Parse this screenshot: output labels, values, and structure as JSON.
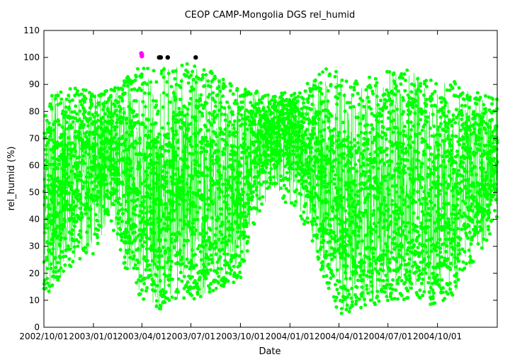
{
  "chart_data": {
    "type": "scatter",
    "title": "CEOP CAMP-Mongolia DGS  rel_humid",
    "xlabel": "Date",
    "ylabel": "rel_humid (%)",
    "ylim": [
      0,
      110
    ],
    "xlim": [
      "2002-10-01",
      "2005-01-20"
    ],
    "grid": false,
    "legend": "none",
    "yticks": [
      0,
      10,
      20,
      30,
      40,
      50,
      60,
      70,
      80,
      90,
      100,
      110
    ],
    "xticks": [
      {
        "date": "2002-10-01",
        "label": "2002/10/01"
      },
      {
        "date": "2003-01-01",
        "label": "2003/01/01"
      },
      {
        "date": "2003-04-01",
        "label": "2003/04/01"
      },
      {
        "date": "2003-07-01",
        "label": "2003/07/01"
      },
      {
        "date": "2003-10-01",
        "label": "2003/10/01"
      },
      {
        "date": "2004-01-01",
        "label": "2004/01/01"
      },
      {
        "date": "2004-04-01",
        "label": "2004/04/01"
      },
      {
        "date": "2004-07-01",
        "label": "2004/07/01"
      },
      {
        "date": "2004-10-01",
        "label": "2004/10/01"
      }
    ],
    "colors": {
      "main": "#00ff00",
      "flag_magenta": "#ff00ff",
      "flag_black": "#000000",
      "axis": "#000000"
    },
    "envelope": [
      {
        "date": "2002-10-01",
        "min": 10,
        "max": 85,
        "typ_min": 18,
        "typ_max": 72
      },
      {
        "date": "2002-11-01",
        "min": 18,
        "max": 88,
        "typ_min": 30,
        "typ_max": 78
      },
      {
        "date": "2002-12-01",
        "min": 24,
        "max": 89,
        "typ_min": 38,
        "typ_max": 80
      },
      {
        "date": "2003-01-01",
        "min": 27,
        "max": 87,
        "typ_min": 45,
        "typ_max": 80
      },
      {
        "date": "2003-02-01",
        "min": 40,
        "max": 88,
        "typ_min": 55,
        "typ_max": 80
      },
      {
        "date": "2003-03-01",
        "min": 22,
        "max": 92,
        "typ_min": 35,
        "typ_max": 82
      },
      {
        "date": "2003-04-01",
        "min": 10,
        "max": 98,
        "typ_min": 18,
        "typ_max": 75
      },
      {
        "date": "2003-05-01",
        "min": 6,
        "max": 98,
        "typ_min": 15,
        "typ_max": 72
      },
      {
        "date": "2003-06-01",
        "min": 10,
        "max": 97,
        "typ_min": 18,
        "typ_max": 78
      },
      {
        "date": "2003-07-01",
        "min": 10,
        "max": 98,
        "typ_min": 20,
        "typ_max": 85
      },
      {
        "date": "2003-08-01",
        "min": 12,
        "max": 97,
        "typ_min": 22,
        "typ_max": 85
      },
      {
        "date": "2003-09-01",
        "min": 14,
        "max": 92,
        "typ_min": 22,
        "typ_max": 80
      },
      {
        "date": "2003-10-01",
        "min": 18,
        "max": 90,
        "typ_min": 28,
        "typ_max": 80
      },
      {
        "date": "2003-11-01",
        "min": 40,
        "max": 88,
        "typ_min": 55,
        "typ_max": 80
      },
      {
        "date": "2003-12-01",
        "min": 52,
        "max": 87,
        "typ_min": 62,
        "typ_max": 80
      },
      {
        "date": "2004-01-01",
        "min": 44,
        "max": 87,
        "typ_min": 60,
        "typ_max": 82
      },
      {
        "date": "2004-02-01",
        "min": 36,
        "max": 90,
        "typ_min": 50,
        "typ_max": 82
      },
      {
        "date": "2004-03-01",
        "min": 20,
        "max": 96,
        "typ_min": 30,
        "typ_max": 80
      },
      {
        "date": "2004-04-01",
        "min": 5,
        "max": 95,
        "typ_min": 15,
        "typ_max": 72
      },
      {
        "date": "2004-05-01",
        "min": 6,
        "max": 92,
        "typ_min": 15,
        "typ_max": 70
      },
      {
        "date": "2004-06-01",
        "min": 8,
        "max": 93,
        "typ_min": 18,
        "typ_max": 76
      },
      {
        "date": "2004-07-01",
        "min": 10,
        "max": 95,
        "typ_min": 20,
        "typ_max": 85
      },
      {
        "date": "2004-08-01",
        "min": 10,
        "max": 97,
        "typ_min": 20,
        "typ_max": 85
      },
      {
        "date": "2004-09-01",
        "min": 9,
        "max": 94,
        "typ_min": 18,
        "typ_max": 80
      },
      {
        "date": "2004-10-01",
        "min": 8,
        "max": 90,
        "typ_min": 18,
        "typ_max": 78
      },
      {
        "date": "2004-11-01",
        "min": 12,
        "max": 92,
        "typ_min": 22,
        "typ_max": 80
      },
      {
        "date": "2004-12-01",
        "min": 20,
        "max": 88,
        "typ_min": 32,
        "typ_max": 78
      },
      {
        "date": "2005-01-20",
        "min": 40,
        "max": 85,
        "typ_min": 50,
        "typ_max": 80
      }
    ],
    "flagged_points": [
      {
        "date": "2003-03-31",
        "y": 101.5,
        "color": "magenta"
      },
      {
        "date": "2003-04-01",
        "y": 100.5,
        "color": "magenta"
      },
      {
        "date": "2003-04-01",
        "y": 101.0,
        "color": "magenta"
      },
      {
        "date": "2003-05-03",
        "y": 100,
        "color": "black"
      },
      {
        "date": "2003-05-06",
        "y": 100,
        "color": "black"
      },
      {
        "date": "2003-05-19",
        "y": 100,
        "color": "black"
      },
      {
        "date": "2003-07-10",
        "y": 100,
        "color": "black"
      }
    ]
  }
}
